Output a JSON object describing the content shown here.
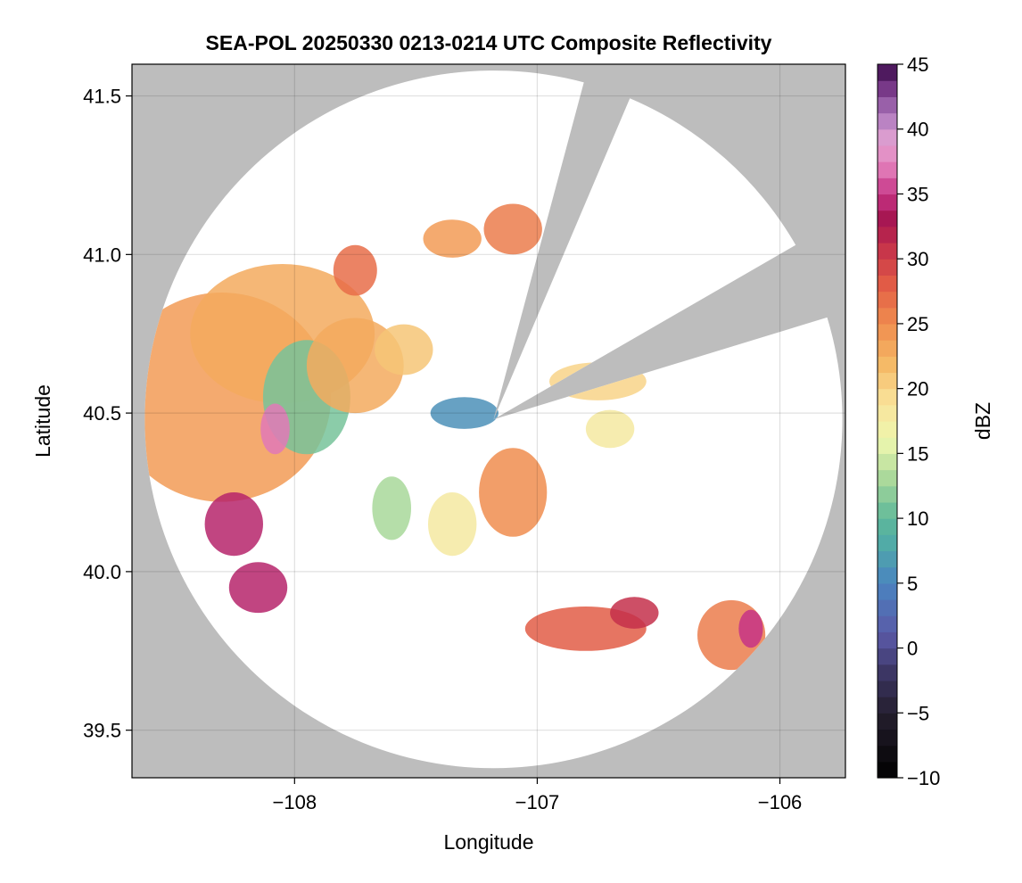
{
  "chart_data": {
    "type": "heatmap",
    "title": "SEA-POL 20250330 0213-0214 UTC Composite Reflectivity",
    "xlabel": "Longitude",
    "ylabel": "Latitude",
    "xlim": [
      -108.67,
      -105.73
    ],
    "ylim": [
      39.35,
      41.6
    ],
    "xticks": [
      -108,
      -107,
      -106
    ],
    "xtick_labels": [
      "−108",
      "−107",
      "−106"
    ],
    "yticks": [
      39.5,
      40.0,
      40.5,
      41.0,
      41.5
    ],
    "ytick_labels": [
      "39.5",
      "40.0",
      "40.5",
      "41.0",
      "41.5"
    ],
    "grid": true,
    "radar": {
      "center_lon": -107.18,
      "center_lat": 40.48,
      "range_lat_deg": 1.1,
      "blocked_sectors_deg": [
        [
          15,
          23
        ],
        [
          60,
          73
        ]
      ],
      "outside_color": "#bdbdbd",
      "no_echo_color": "#ffffff"
    },
    "colorbar": {
      "label": "dBZ",
      "min": -10,
      "max": 45,
      "ticks": [
        -10,
        -5,
        0,
        5,
        10,
        15,
        20,
        25,
        30,
        35,
        40,
        45
      ],
      "tick_labels": [
        "−10",
        "−5",
        "0",
        "5",
        "10",
        "15",
        "20",
        "25",
        "30",
        "35",
        "40",
        "45"
      ],
      "stops": [
        {
          "v": -10,
          "c": "#000000"
        },
        {
          "v": -5,
          "c": "#241f2e"
        },
        {
          "v": -2,
          "c": "#3b3461"
        },
        {
          "v": 1,
          "c": "#5a58a6"
        },
        {
          "v": 5,
          "c": "#4a84c0"
        },
        {
          "v": 8,
          "c": "#50aaa8"
        },
        {
          "v": 10,
          "c": "#5fb89a"
        },
        {
          "v": 13,
          "c": "#a8d89a"
        },
        {
          "v": 16,
          "c": "#eef7ae"
        },
        {
          "v": 19,
          "c": "#f9e29a"
        },
        {
          "v": 22,
          "c": "#f5b865"
        },
        {
          "v": 25,
          "c": "#f08d4f"
        },
        {
          "v": 28,
          "c": "#e25d46"
        },
        {
          "v": 31,
          "c": "#c4304b"
        },
        {
          "v": 33,
          "c": "#a51550"
        },
        {
          "v": 35,
          "c": "#c63486"
        },
        {
          "v": 37,
          "c": "#e179b7"
        },
        {
          "v": 39,
          "c": "#e4a3d2"
        },
        {
          "v": 41,
          "c": "#b07cc0"
        },
        {
          "v": 43,
          "c": "#7c3c8c"
        },
        {
          "v": 45,
          "c": "#3a0a4a"
        }
      ]
    },
    "echo_cells": [
      {
        "lon": -108.3,
        "lat": 40.55,
        "rx": 0.45,
        "ry": 0.33,
        "dbz": 24
      },
      {
        "lon": -108.05,
        "lat": 40.75,
        "rx": 0.38,
        "ry": 0.22,
        "dbz": 23
      },
      {
        "lon": -107.95,
        "lat": 40.55,
        "rx": 0.18,
        "ry": 0.18,
        "dbz": 11
      },
      {
        "lon": -107.75,
        "lat": 40.65,
        "rx": 0.2,
        "ry": 0.15,
        "dbz": 23
      },
      {
        "lon": -107.75,
        "lat": 40.95,
        "rx": 0.09,
        "ry": 0.08,
        "dbz": 27
      },
      {
        "lon": -107.55,
        "lat": 40.7,
        "rx": 0.12,
        "ry": 0.08,
        "dbz": 21
      },
      {
        "lon": -107.35,
        "lat": 41.05,
        "rx": 0.12,
        "ry": 0.06,
        "dbz": 24
      },
      {
        "lon": -107.1,
        "lat": 41.08,
        "rx": 0.12,
        "ry": 0.08,
        "dbz": 26
      },
      {
        "lon": -108.25,
        "lat": 40.15,
        "rx": 0.12,
        "ry": 0.1,
        "dbz": 34
      },
      {
        "lon": -108.15,
        "lat": 39.95,
        "rx": 0.12,
        "ry": 0.08,
        "dbz": 34
      },
      {
        "lon": -108.08,
        "lat": 40.45,
        "rx": 0.06,
        "ry": 0.08,
        "dbz": 37
      },
      {
        "lon": -107.3,
        "lat": 40.5,
        "rx": 0.14,
        "ry": 0.05,
        "dbz": 6
      },
      {
        "lon": -107.1,
        "lat": 40.25,
        "rx": 0.14,
        "ry": 0.14,
        "dbz": 25
      },
      {
        "lon": -107.35,
        "lat": 40.15,
        "rx": 0.1,
        "ry": 0.1,
        "dbz": 18
      },
      {
        "lon": -107.6,
        "lat": 40.2,
        "rx": 0.08,
        "ry": 0.1,
        "dbz": 13
      },
      {
        "lon": -106.75,
        "lat": 40.6,
        "rx": 0.2,
        "ry": 0.06,
        "dbz": 20
      },
      {
        "lon": -106.7,
        "lat": 40.45,
        "rx": 0.1,
        "ry": 0.06,
        "dbz": 18
      },
      {
        "lon": -106.8,
        "lat": 39.82,
        "rx": 0.25,
        "ry": 0.07,
        "dbz": 28
      },
      {
        "lon": -106.6,
        "lat": 39.87,
        "rx": 0.1,
        "ry": 0.05,
        "dbz": 31
      },
      {
        "lon": -106.2,
        "lat": 39.8,
        "rx": 0.14,
        "ry": 0.11,
        "dbz": 26
      },
      {
        "lon": -106.12,
        "lat": 39.82,
        "rx": 0.05,
        "ry": 0.06,
        "dbz": 35
      }
    ]
  }
}
